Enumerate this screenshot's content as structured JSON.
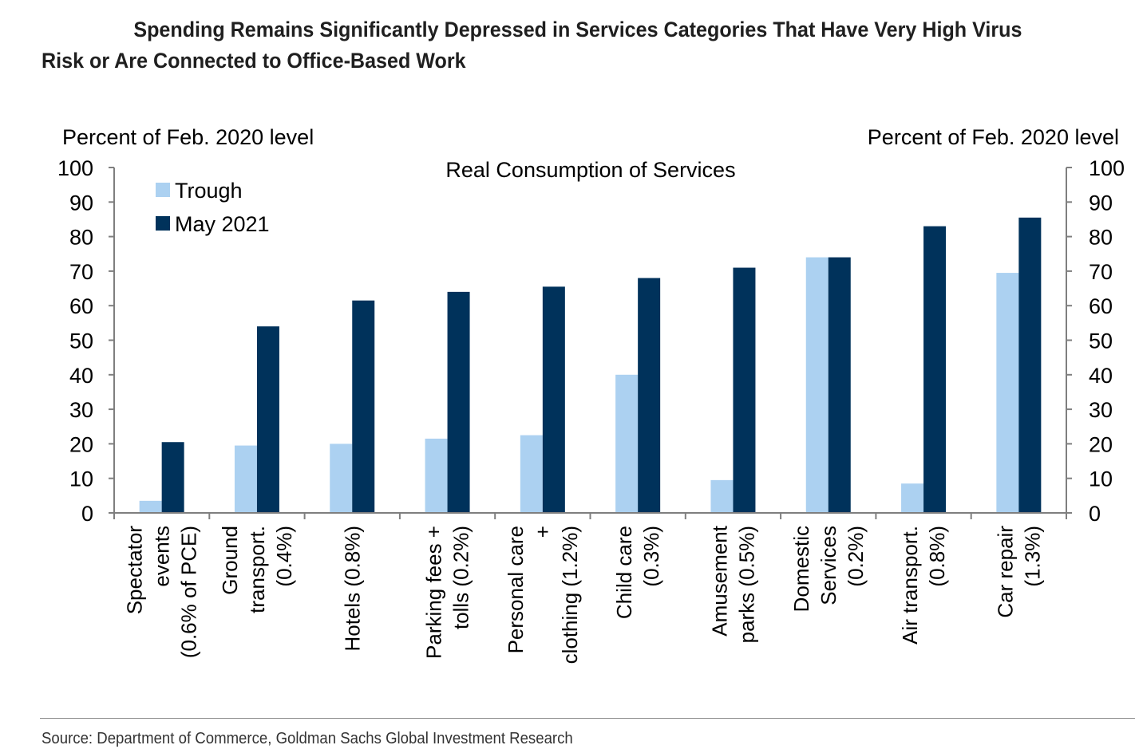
{
  "page": {
    "title": "Spending Remains Significantly Depressed in Services Categories That Have Very High Virus Risk or Are Connected to Office-Based Work",
    "source": "Source: Department of Commerce, Goldman Sachs Global Investment Research"
  },
  "chart_data": {
    "type": "bar",
    "title": "Real Consumption of Services",
    "ylabel_left": "Percent of Feb. 2020 level",
    "ylabel_right": "Percent of Feb. 2020 level",
    "ylim": [
      0,
      100
    ],
    "yticks": [
      0,
      10,
      20,
      30,
      40,
      50,
      60,
      70,
      80,
      90,
      100
    ],
    "legend_position": "top-left",
    "grid": false,
    "categories": [
      [
        "Spectator",
        "events",
        "(0.6% of PCE)"
      ],
      [
        "Ground",
        "transport.",
        "(0.4%)"
      ],
      [
        "Hotels (0.8%)"
      ],
      [
        "Parking fees +",
        "tolls (0.2%)"
      ],
      [
        "Personal care",
        "+",
        "clothing (1.2%)"
      ],
      [
        "Child care",
        "(0.3%)"
      ],
      [
        "Amusement",
        "parks (0.5%)"
      ],
      [
        "Domestic",
        "Services",
        "(0.2%)"
      ],
      [
        "Air transport.",
        "(0.8%)"
      ],
      [
        "Car repair",
        "(1.3%)"
      ]
    ],
    "series": [
      {
        "name": "Trough",
        "color": "#acd1f1",
        "values": [
          3.5,
          19.5,
          20,
          21.5,
          22.5,
          40,
          9.5,
          74,
          8.5,
          69.5
        ]
      },
      {
        "name": "May 2021",
        "color": "#00325b",
        "values": [
          20.5,
          54,
          61.5,
          64,
          65.5,
          68,
          71,
          74,
          83,
          85.5
        ]
      }
    ]
  }
}
